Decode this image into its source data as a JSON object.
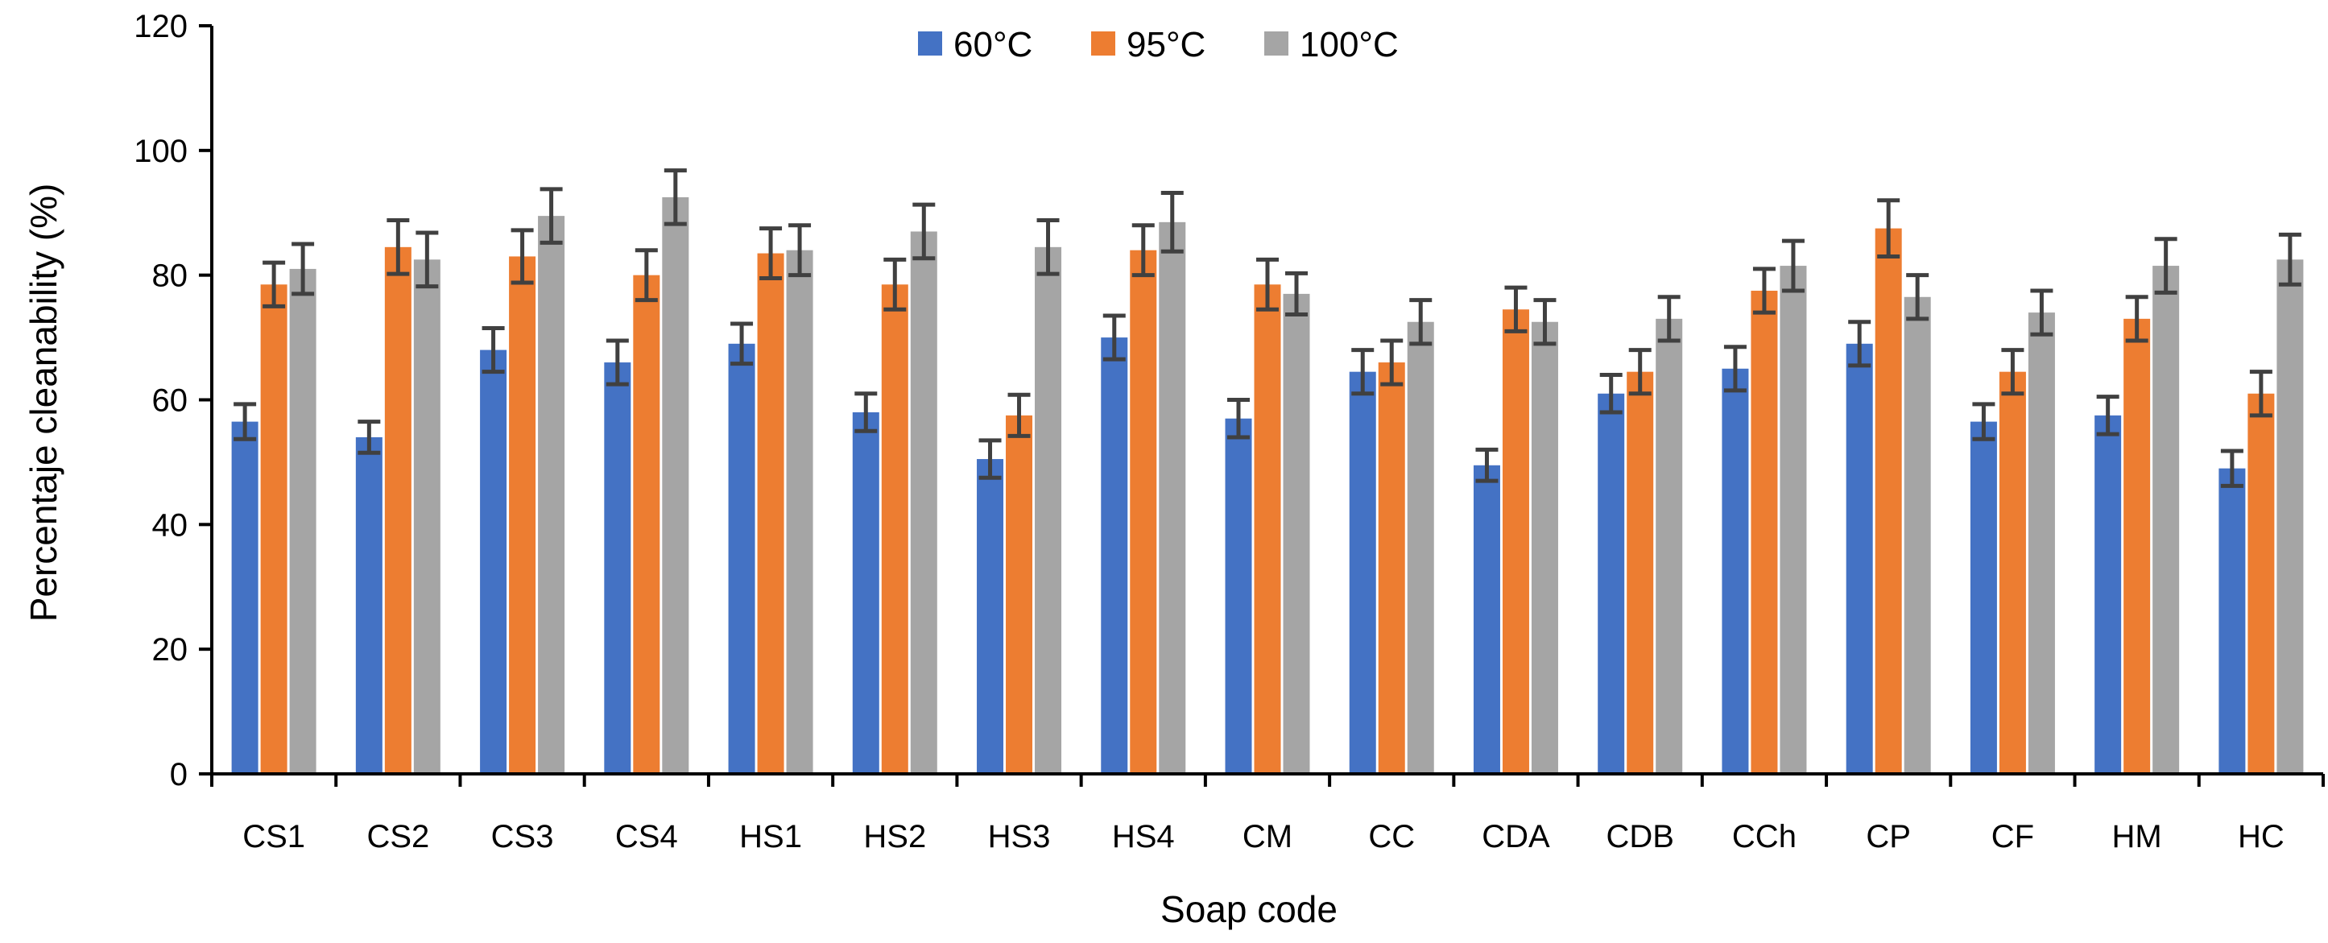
{
  "chart_data": {
    "type": "bar",
    "title": "",
    "xlabel": "Soap code",
    "ylabel": "Percentaje cleanability (%)",
    "ylim": [
      0,
      120
    ],
    "yticks": [
      0,
      20,
      40,
      60,
      80,
      100,
      120
    ],
    "ytick_labels": [
      "0",
      "20",
      "40",
      "60",
      "80",
      "100",
      "120"
    ],
    "grid": false,
    "legend_position": "top-center",
    "categories": [
      "CS1",
      "CS2",
      "CS3",
      "CS4",
      "HS1",
      "HS2",
      "HS3",
      "HS4",
      "CM",
      "CC",
      "CDA",
      "CDB",
      "CCh",
      "CP",
      "CF",
      "HM",
      "HC"
    ],
    "series": [
      {
        "name": "60°C",
        "color": "#4472C4",
        "values": [
          56.5,
          54,
          68,
          66,
          69,
          58,
          50.5,
          70,
          57,
          64.5,
          49.5,
          61,
          65,
          69,
          56.5,
          57.5,
          49
        ],
        "errors": [
          2.8,
          2.5,
          3.5,
          3.5,
          3.2,
          3,
          3,
          3.5,
          3,
          3.5,
          2.5,
          3,
          3.5,
          3.5,
          2.8,
          3,
          2.8
        ]
      },
      {
        "name": "95°C",
        "color": "#ED7D31",
        "values": [
          78.5,
          84.5,
          83,
          80,
          83.5,
          78.5,
          57.5,
          84,
          78.5,
          66,
          74.5,
          64.5,
          77.5,
          87.5,
          64.5,
          73,
          61
        ],
        "errors": [
          3.5,
          4.3,
          4.2,
          4,
          4,
          4,
          3.3,
          4,
          4,
          3.5,
          3.5,
          3.5,
          3.5,
          4.5,
          3.5,
          3.5,
          3.5
        ]
      },
      {
        "name": "100°C",
        "color": "#A5A5A5",
        "values": [
          81,
          82.5,
          89.5,
          92.5,
          84,
          87,
          84.5,
          88.5,
          77,
          72.5,
          72.5,
          73,
          81.5,
          76.5,
          74,
          81.5,
          82.5
        ],
        "errors": [
          4,
          4.3,
          4.3,
          4.3,
          4,
          4.3,
          4.3,
          4.7,
          3.3,
          3.5,
          3.5,
          3.5,
          4,
          3.5,
          3.5,
          4.3,
          4
        ]
      }
    ]
  }
}
